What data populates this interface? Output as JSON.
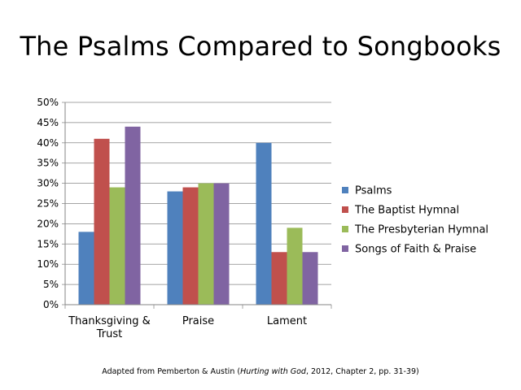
{
  "chart_data": {
    "type": "bar",
    "title": "The Psalms Compared to Songbooks",
    "categories": [
      "Thanksgiving & Trust",
      "Praise",
      "Lament"
    ],
    "category_lines": [
      [
        "Thanksgiving &",
        "Trust"
      ],
      [
        "Praise"
      ],
      [
        "Lament"
      ]
    ],
    "series": [
      {
        "name": "Psalms",
        "color": "#4F81BD",
        "values": [
          18,
          28,
          40
        ]
      },
      {
        "name": "The Baptist Hymnal",
        "color": "#C0504D",
        "values": [
          41,
          29,
          13
        ]
      },
      {
        "name": "The Presbyterian Hymnal",
        "color": "#9BBB59",
        "values": [
          29,
          30,
          19
        ]
      },
      {
        "name": "Songs of Faith & Praise",
        "color": "#8064A2",
        "values": [
          44,
          30,
          13
        ]
      }
    ],
    "ylim": [
      0,
      50
    ],
    "yticks": [
      0,
      5,
      10,
      15,
      20,
      25,
      30,
      35,
      40,
      45,
      50
    ],
    "ytick_labels": [
      "0%",
      "5%",
      "10%",
      "15%",
      "20%",
      "25%",
      "30%",
      "35%",
      "40%",
      "45%",
      "50%"
    ],
    "grid": true,
    "legend_position": "right",
    "xlabel": "",
    "ylabel": ""
  },
  "caption": {
    "before": "Adapted from Pemberton & Austin (",
    "italic": "Hurting with God",
    "after": ", 2012, Chapter 2, pp. 31-39)"
  }
}
